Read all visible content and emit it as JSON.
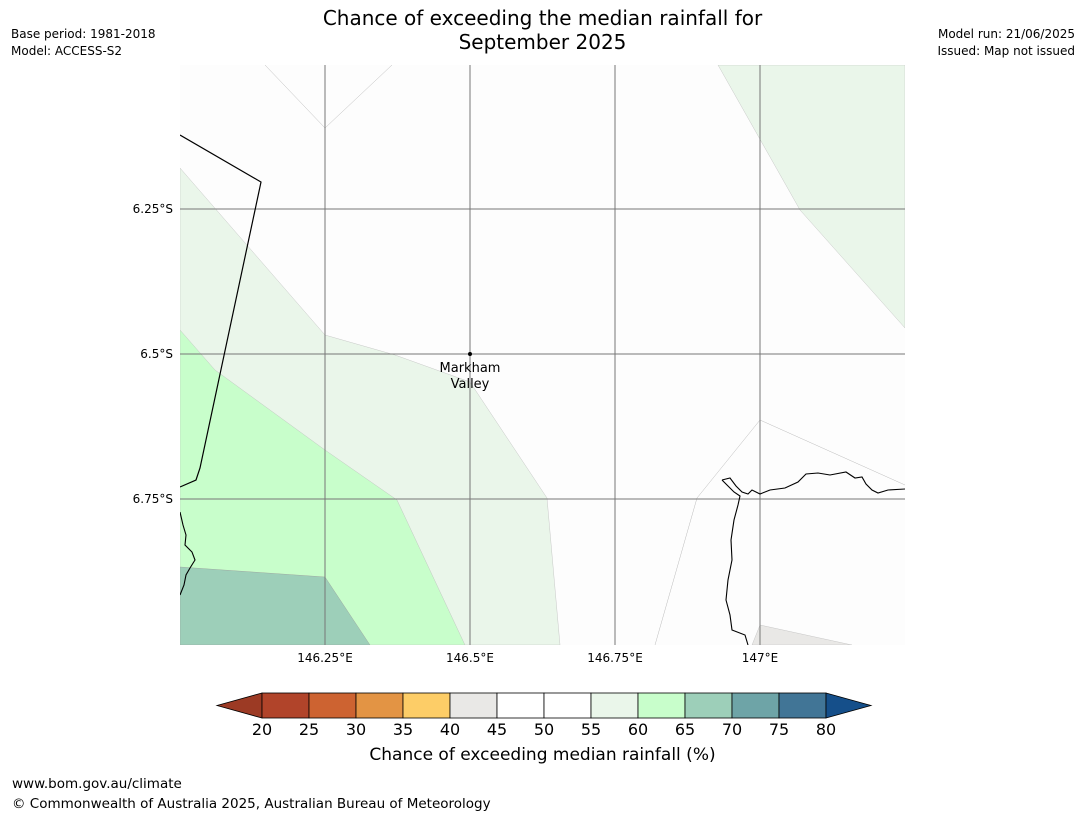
{
  "header": {
    "title_line1": "Chance of exceeding the median rainfall for",
    "title_line2": "September 2025",
    "base_period": "Base period: 1981-2018",
    "model": "Model: ACCESS-S2",
    "model_run": "Model run: 21/06/2025",
    "issued": "Issued: Map not issued"
  },
  "map": {
    "lat_ticks": [
      "6.25°S",
      "6.5°S",
      "6.75°S"
    ],
    "lon_ticks": [
      "146.25°E",
      "146.5°E",
      "146.75°E",
      "147°E"
    ],
    "place_name_line1": "Markham",
    "place_name_line2": "Valley",
    "place_name": "Markham Valley"
  },
  "legend": {
    "title": "Chance of exceeding median rainfall (%)",
    "ticks": [
      "20",
      "25",
      "30",
      "35",
      "40",
      "45",
      "50",
      "55",
      "60",
      "65",
      "70",
      "75",
      "80"
    ],
    "colors": [
      "#9c3a24",
      "#b1442a",
      "#cd6331",
      "#e39444",
      "#fdcd67",
      "#e9e8e6",
      "#ffffff",
      "#ffffff",
      "#eaf6ea",
      "#c8fecb",
      "#9dcfb9",
      "#6ea4a7",
      "#417596",
      "#154f8a"
    ]
  },
  "footer": {
    "url": "www.bom.gov.au/climate",
    "copyright": "© Commonwealth of Australia 2025, Australian Bureau of Meteorology"
  }
}
